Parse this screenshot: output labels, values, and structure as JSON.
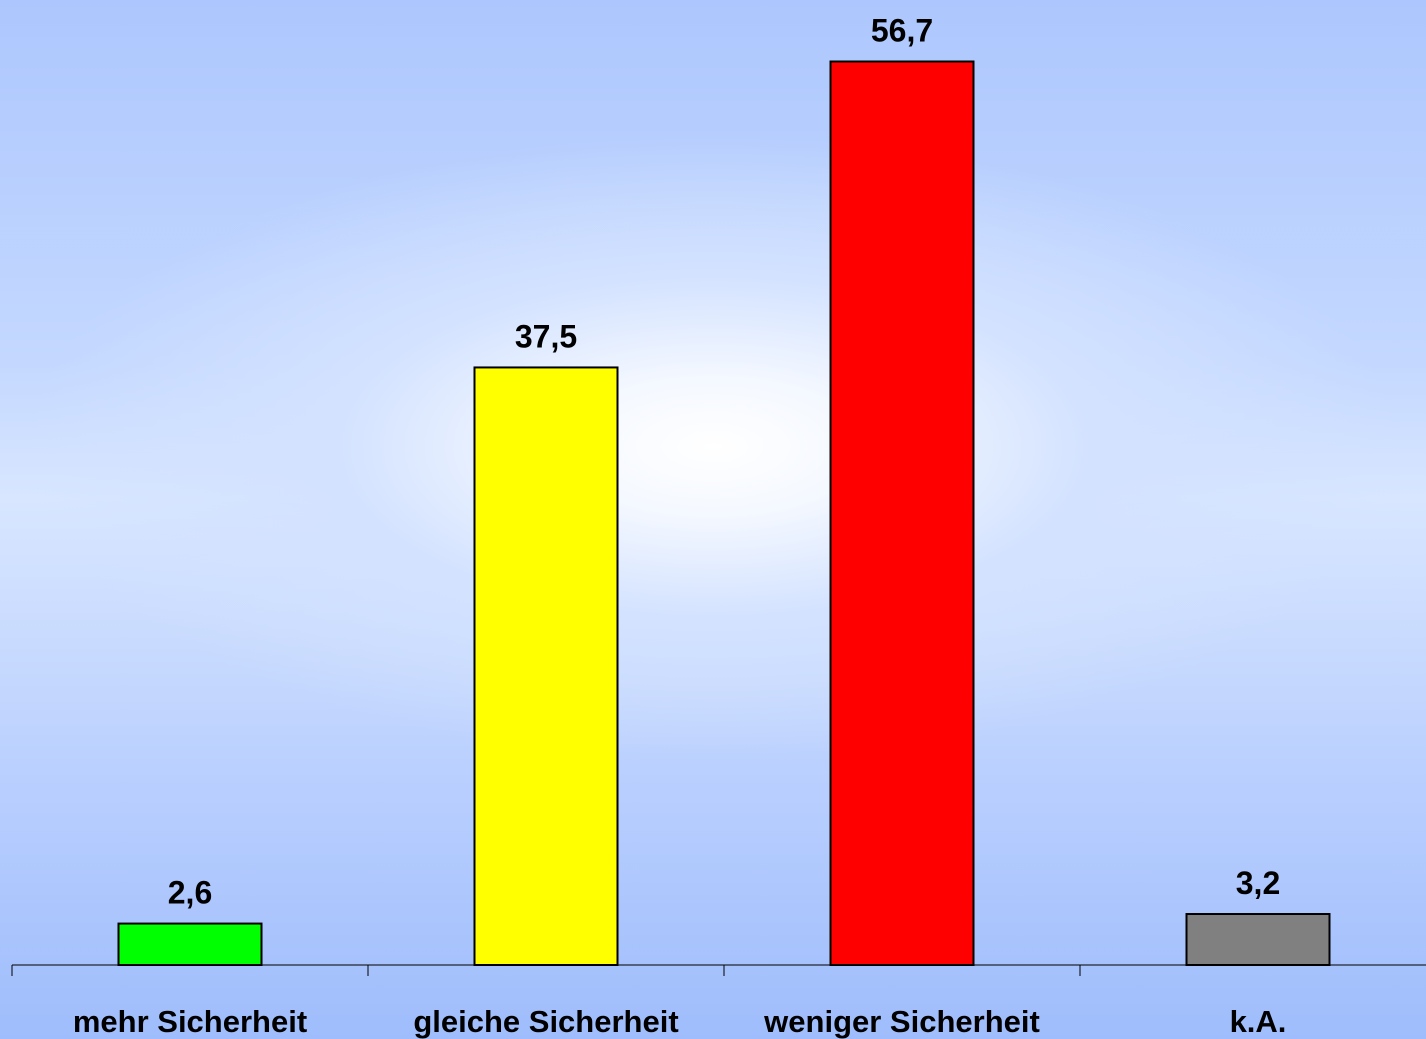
{
  "chart_data": {
    "type": "bar",
    "categories": [
      "mehr Sicherheit",
      "gleiche Sicherheit",
      "weniger Sicherheit",
      "k.A."
    ],
    "values": [
      2.6,
      37.5,
      56.7,
      3.2
    ],
    "value_labels": [
      "2,6",
      "37,5",
      "56,7",
      "3,2"
    ],
    "colors": [
      "#00ff00",
      "#ffff00",
      "#ff0000",
      "#808080"
    ],
    "title": "",
    "xlabel": "",
    "ylabel": "",
    "ylim": [
      0,
      60
    ],
    "grid": false,
    "legend": "none",
    "background": "blue-white radial gradient"
  }
}
